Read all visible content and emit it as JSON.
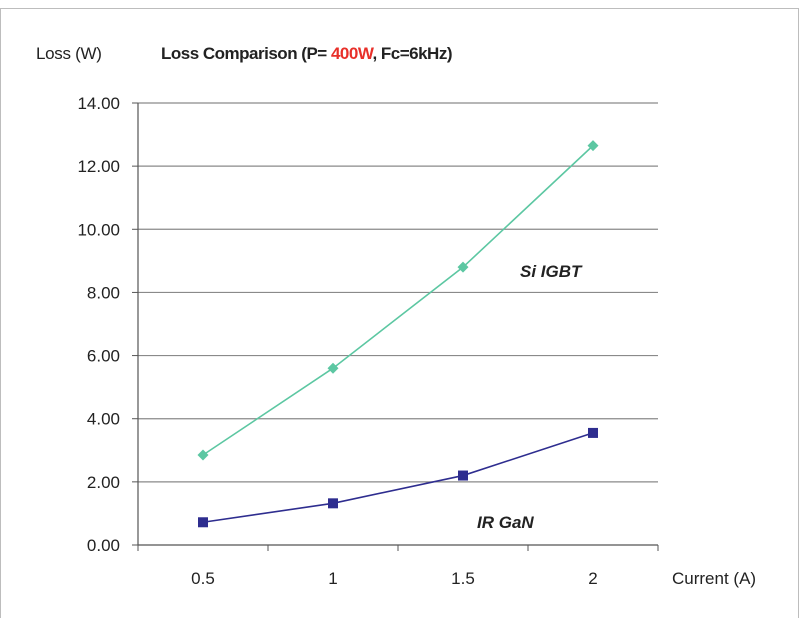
{
  "chart_data": {
    "type": "line",
    "title_parts": [
      "Loss Comparison (P= ",
      "400W",
      ", Fc=6kHz)"
    ],
    "title_highlight_color": "#e8302a",
    "ylabel": "Loss (W)",
    "xlabel": "Current (A)",
    "categories": [
      "0.5",
      "1",
      "1.5",
      "2"
    ],
    "ylim": [
      0,
      14
    ],
    "yticks": [
      "0.00",
      "2.00",
      "4.00",
      "6.00",
      "8.00",
      "10.00",
      "12.00",
      "14.00"
    ],
    "grid": true,
    "series": [
      {
        "name": "Si IGBT",
        "values": [
          2.85,
          5.6,
          8.8,
          12.65
        ],
        "color": "#5cc7a2",
        "marker": "diamond"
      },
      {
        "name": "IR GaN",
        "values": [
          0.72,
          1.32,
          2.2,
          3.55
        ],
        "color": "#2e2d8f",
        "marker": "square"
      }
    ]
  }
}
